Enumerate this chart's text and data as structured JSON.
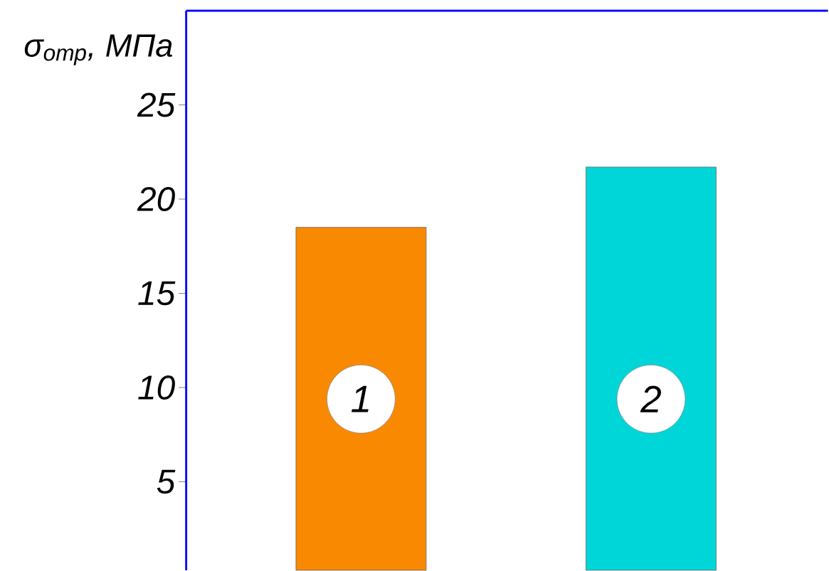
{
  "chart_data": {
    "type": "bar",
    "ylabel": "σ$_{отр}$, МПа",
    "categories": [
      "1",
      "2"
    ],
    "values": [
      18.5,
      21.7
    ],
    "colors": [
      "#f98900",
      "#00d6d8"
    ],
    "ylim": [
      0.3,
      30
    ],
    "yticks": [
      5,
      10,
      15,
      20,
      25
    ],
    "grid": false
  }
}
